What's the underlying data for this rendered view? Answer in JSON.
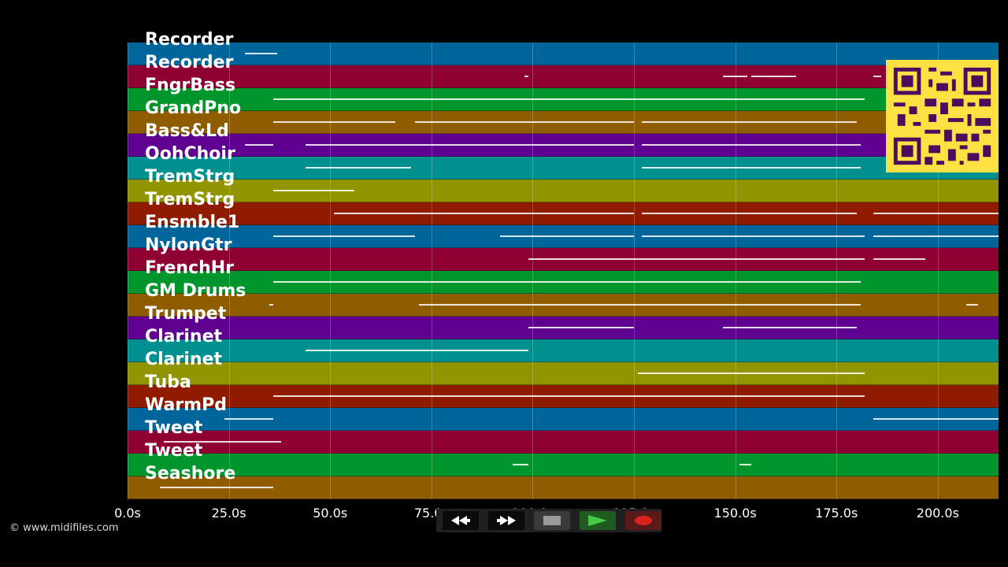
{
  "app": {
    "credit": "© www.midifiles.com"
  },
  "tracks": [
    {
      "name": "Recorder",
      "color": "#00659b"
    },
    {
      "name": "Recorder",
      "color": "#8f0034"
    },
    {
      "name": "FngrBass",
      "color": "#00962c"
    },
    {
      "name": "GrandPno",
      "color": "#8f5c00"
    },
    {
      "name": "Bass&Ld",
      "color": "#5f0090"
    },
    {
      "name": "OohChoir",
      "color": "#009090"
    },
    {
      "name": "TremStrg",
      "color": "#909400"
    },
    {
      "name": "TremStrg",
      "color": "#8f1c00"
    },
    {
      "name": "Ensmble1",
      "color": "#00659b"
    },
    {
      "name": "NylonGtr",
      "color": "#8f0034"
    },
    {
      "name": "FrenchHr",
      "color": "#00962c"
    },
    {
      "name": "GM Drums",
      "color": "#8f5c00"
    },
    {
      "name": "Trumpet",
      "color": "#5f0090"
    },
    {
      "name": "Clarinet",
      "color": "#009090"
    },
    {
      "name": "Clarinet",
      "color": "#909400"
    },
    {
      "name": "Tuba",
      "color": "#8f1c00"
    },
    {
      "name": "WarmPd",
      "color": "#00659b"
    },
    {
      "name": "Tweet",
      "color": "#8f0034"
    },
    {
      "name": "Tweet",
      "color": "#00962c"
    },
    {
      "name": "Seashore",
      "color": "#8f5c00"
    }
  ],
  "timeline": {
    "min_seconds": 0,
    "max_seconds": 215,
    "ticks": [
      {
        "value": 0,
        "label": "0.0s"
      },
      {
        "value": 25,
        "label": "25.0s"
      },
      {
        "value": 50,
        "label": "50.0s"
      },
      {
        "value": 75,
        "label": "75.0s"
      },
      {
        "value": 100,
        "label": "100.0s"
      },
      {
        "value": 125,
        "label": "125.0s"
      },
      {
        "value": 150,
        "label": "150.0s"
      },
      {
        "value": 175,
        "label": "175.0s"
      },
      {
        "value": 200,
        "label": "200.0s"
      }
    ]
  },
  "notes": [
    {
      "lane": 0,
      "segments": [
        [
          29,
          37
        ]
      ]
    },
    {
      "lane": 1,
      "segments": [
        [
          98,
          99
        ],
        [
          147,
          153
        ],
        [
          154,
          165
        ],
        [
          184,
          186
        ]
      ]
    },
    {
      "lane": 2,
      "segments": [
        [
          36,
          182
        ]
      ]
    },
    {
      "lane": 3,
      "segments": [
        [
          36,
          66
        ],
        [
          71,
          125
        ],
        [
          127,
          180
        ]
      ]
    },
    {
      "lane": 4,
      "segments": [
        [
          29,
          36
        ],
        [
          44,
          125
        ],
        [
          127,
          181
        ]
      ]
    },
    {
      "lane": 5,
      "segments": [
        [
          44,
          70
        ],
        [
          127,
          181
        ]
      ]
    },
    {
      "lane": 6,
      "segments": [
        [
          36,
          56
        ]
      ]
    },
    {
      "lane": 7,
      "segments": [
        [
          51,
          125
        ],
        [
          127,
          180
        ],
        [
          184,
          215
        ]
      ]
    },
    {
      "lane": 8,
      "segments": [
        [
          36,
          71
        ],
        [
          92,
          125
        ],
        [
          127,
          182
        ],
        [
          184,
          215
        ]
      ]
    },
    {
      "lane": 9,
      "segments": [
        [
          99,
          182
        ],
        [
          184,
          197
        ]
      ]
    },
    {
      "lane": 10,
      "segments": [
        [
          36,
          181
        ]
      ]
    },
    {
      "lane": 11,
      "segments": [
        [
          35,
          36
        ],
        [
          72,
          181
        ],
        [
          207,
          210
        ]
      ]
    },
    {
      "lane": 12,
      "segments": [
        [
          99,
          125
        ],
        [
          147,
          180
        ]
      ]
    },
    {
      "lane": 13,
      "segments": [
        [
          44,
          99
        ]
      ]
    },
    {
      "lane": 14,
      "segments": [
        [
          126,
          182
        ]
      ]
    },
    {
      "lane": 15,
      "segments": [
        [
          36,
          182
        ]
      ]
    },
    {
      "lane": 16,
      "segments": [
        [
          24,
          36
        ],
        [
          184,
          215
        ]
      ]
    },
    {
      "lane": 17,
      "segments": [
        [
          9,
          38
        ]
      ]
    },
    {
      "lane": 18,
      "segments": [
        [
          95,
          99
        ],
        [
          151,
          154
        ]
      ]
    },
    {
      "lane": 19,
      "segments": [
        [
          8,
          36
        ]
      ]
    }
  ],
  "transport": {
    "rewind_icon": "rewind-icon",
    "forward_icon": "fast-forward-icon",
    "stop_icon": "stop-icon",
    "play_icon": "play-icon",
    "record_icon": "record-icon",
    "play_color": "#44cc44",
    "record_color": "#dd2222"
  },
  "qr_code": {
    "icon": "qr-code",
    "color": "#fde143"
  }
}
